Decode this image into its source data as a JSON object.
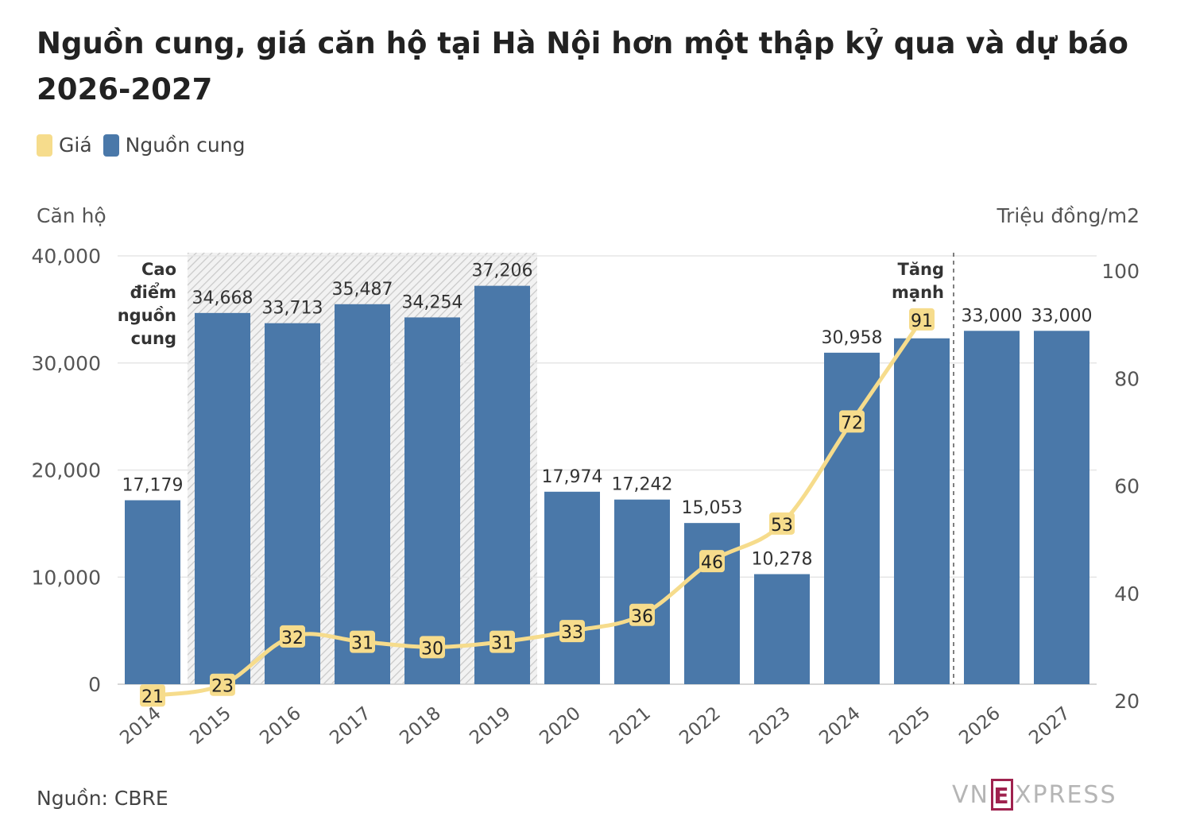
{
  "title": "Nguồn cung, giá căn hộ tại Hà Nội hơn một thập kỷ qua và dự báo 2026-2027",
  "legend": [
    {
      "name": "Giá",
      "color": "#f6dc8c"
    },
    {
      "name": "Nguồn cung",
      "color": "#4a78a9"
    }
  ],
  "source": "Nguồn: CBRE",
  "brand": {
    "prefix": "VN",
    "e": "E",
    "suffix": "XPRESS"
  },
  "chart_data": {
    "type": "bar",
    "categories": [
      "2014",
      "2015",
      "2016",
      "2017",
      "2018",
      "2019",
      "2020",
      "2021",
      "2022",
      "2023",
      "2024",
      "2025",
      "2026",
      "2027"
    ],
    "ylabel": "Căn hộ",
    "ylabel_right": "Triệu đồng/m2",
    "ylim": [
      0,
      40000
    ],
    "ylim_right": [
      20,
      100
    ],
    "left_ticks": [
      0,
      10000,
      20000,
      30000,
      40000
    ],
    "left_tick_labels": [
      "0",
      "10,000",
      "20,000",
      "30,000",
      "40,000"
    ],
    "right_ticks": [
      20,
      40,
      60,
      80,
      100
    ],
    "grid": true,
    "legend_position": "top-left",
    "series": [
      {
        "name": "Nguồn cung",
        "type": "bar",
        "axis": "left",
        "color": "#4a78a9",
        "values": [
          17179,
          34668,
          33713,
          35487,
          34254,
          37206,
          17974,
          17242,
          15053,
          10278,
          30958,
          32300,
          33000,
          33000
        ],
        "labels": [
          "17,179",
          "34,668",
          "33,713",
          "35,487",
          "34,254",
          "37,206",
          "17,974",
          "17,242",
          "15,053",
          "10,278",
          "30,958",
          "",
          "33,000",
          "33,000"
        ]
      },
      {
        "name": "Giá",
        "type": "line",
        "axis": "right",
        "color": "#f6dc8c",
        "values": [
          21,
          23,
          32,
          31,
          30,
          31,
          33,
          36,
          46,
          53,
          72,
          91,
          null,
          null
        ]
      }
    ],
    "annotations": [
      {
        "text": [
          "Cao",
          "điểm",
          "nguồn",
          "cung"
        ],
        "from": "2015",
        "to": "2019",
        "style": "hatched-region"
      },
      {
        "text": [
          "Tăng",
          "mạnh"
        ],
        "at": "2026",
        "style": "dashed-divider"
      }
    ]
  }
}
